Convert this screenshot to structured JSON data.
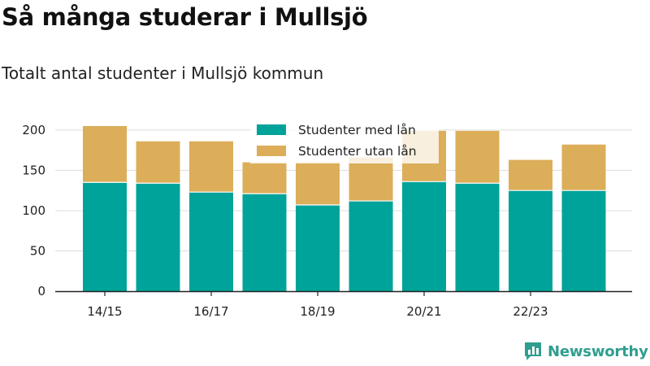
{
  "title": "Så många studerar i Mullsjö",
  "subtitle": "Totalt antal studenter i Mullsjö kommun",
  "brand": {
    "name": "Newsworthy",
    "color": "#2f9e8f",
    "icon": "newsworthy-logo-icon"
  },
  "colors": {
    "with_loan": "#00a39a",
    "without_loan": "#dcae5a",
    "grid": "#dddddd",
    "axis": "#222222"
  },
  "chart_data": {
    "type": "bar",
    "stacked": true,
    "categories": [
      "14/15",
      "15/16",
      "16/17",
      "17/18",
      "18/19",
      "19/20",
      "20/21",
      "21/22",
      "22/23",
      "23/24"
    ],
    "x_tick_labels": [
      "14/15",
      "16/17",
      "18/19",
      "20/21",
      "22/23"
    ],
    "series": [
      {
        "name": "Studenter med lån",
        "values": [
          135,
          134,
          123,
          121,
          107,
          112,
          136,
          134,
          125,
          125
        ]
      },
      {
        "name": "Studenter utan lån",
        "values": [
          70,
          52,
          63,
          39,
          53,
          54,
          63,
          65,
          38,
          57
        ]
      }
    ],
    "ylim": [
      0,
      210
    ],
    "yticks": [
      0,
      50,
      100,
      150,
      200
    ],
    "grid": true,
    "legend_position": "top-center"
  }
}
